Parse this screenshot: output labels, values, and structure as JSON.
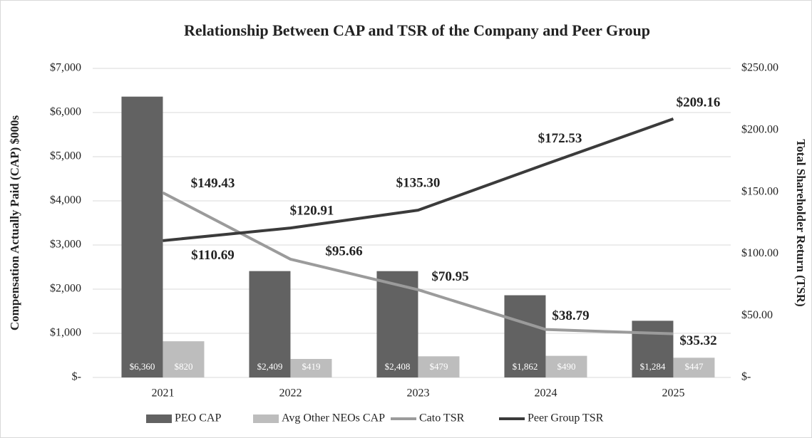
{
  "chart_data": {
    "type": "bar_line",
    "title": "Relationship Between CAP and TSR of the Company and Peer Group",
    "y_label": "Compensation Actually Paid (CAP) $000s",
    "y2_label": "Total Shareholder Return (TSR)",
    "categories": [
      "2021",
      "2022",
      "2023",
      "2024",
      "2025"
    ],
    "series": [
      {
        "name": "PEO CAP",
        "type": "bar",
        "color": "#626262",
        "values": [
          6360,
          2409,
          2408,
          1862,
          1284
        ],
        "value_labels": [
          "$6,360",
          "$2,409",
          "$2,408",
          "$1,862",
          "$1,284"
        ]
      },
      {
        "name": "Avg Other NEOs CAP",
        "type": "bar",
        "color": "#bdbdbd",
        "values": [
          820,
          419,
          479,
          490,
          447
        ],
        "value_labels": [
          "$820",
          "$419",
          "$479",
          "$490",
          "$447"
        ]
      },
      {
        "name": "Cato TSR",
        "type": "line",
        "axis": "y2",
        "color": "#9b9b9b",
        "values": [
          149.43,
          95.66,
          70.95,
          38.79,
          35.32
        ],
        "value_labels": [
          "$149.43",
          "$95.66",
          "$70.95",
          "$38.79",
          "$35.32"
        ]
      },
      {
        "name": "Peer Group TSR",
        "type": "line",
        "axis": "y2",
        "color": "#3b3b3b",
        "values": [
          110.69,
          120.91,
          135.3,
          172.53,
          209.16
        ],
        "value_labels": [
          "$110.69",
          "$120.91",
          "$135.30",
          "$172.53",
          "$209.16"
        ]
      }
    ],
    "ylim": [
      0,
      7000
    ],
    "yticks": [
      {
        "value": 0,
        "label": "$-"
      },
      {
        "value": 1000,
        "label": "$1,000"
      },
      {
        "value": 2000,
        "label": "$2,000"
      },
      {
        "value": 3000,
        "label": "$3,000"
      },
      {
        "value": 4000,
        "label": "$4,000"
      },
      {
        "value": 5000,
        "label": "$5,000"
      },
      {
        "value": 6000,
        "label": "$6,000"
      },
      {
        "value": 7000,
        "label": "$7,000"
      }
    ],
    "y2lim": [
      0,
      250
    ],
    "y2ticks": [
      {
        "value": 0,
        "label": "$-"
      },
      {
        "value": 50,
        "label": "$50.00"
      },
      {
        "value": 100,
        "label": "$100.00"
      },
      {
        "value": 150,
        "label": "$150.00"
      },
      {
        "value": 200,
        "label": "$200.00"
      },
      {
        "value": 250,
        "label": "$250.00"
      }
    ],
    "grid": true,
    "legend": "bottom"
  }
}
